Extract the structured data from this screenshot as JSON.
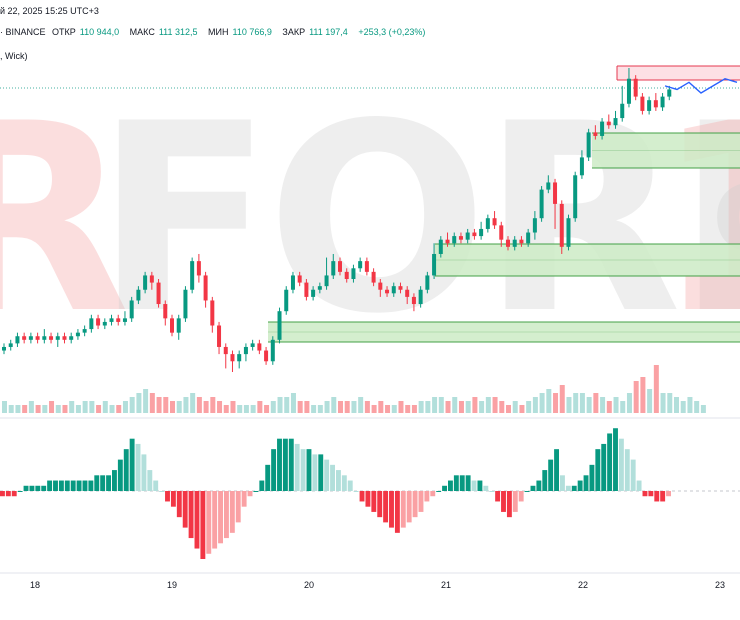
{
  "header": {
    "datetime": "й 22, 2025 15:25 UTC+3",
    "source": "· BINANCE",
    "open_label": "ОТКР",
    "open": "110 944,0",
    "high_label": "МАКС",
    "high": "111 312,5",
    "low_label": "МИН",
    "low": "110 766,9",
    "close_label": "ЗАКР",
    "close": "111 197,4",
    "change": "+253,3 (+0,23%)",
    "indicator": ", Wick)"
  },
  "watermark": {
    "left": "R",
    "main": "FOREX.",
    "right_digit": "1",
    "small": "o",
    "grey": "#cfcfcf",
    "red": "#f4a3a3"
  },
  "colors": {
    "up": "#089981",
    "down": "#f23645",
    "up_light": "#b2dfdb",
    "down_light": "#faa1a4",
    "zone_fill": "#cdebc6",
    "zone_line": "#43a047",
    "resist_fill": "#fde0e5",
    "resist_line": "#e53950",
    "forecast": "#2962ff"
  },
  "chart_data": {
    "type": "candlestick",
    "x_ticks": [
      {
        "label": "18",
        "pos": 35
      },
      {
        "label": "19",
        "pos": 172
      },
      {
        "label": "20",
        "pos": 309
      },
      {
        "label": "21",
        "pos": 446
      },
      {
        "label": "22",
        "pos": 583
      },
      {
        "label": "23",
        "pos": 720
      }
    ],
    "price_domain": [
      100,
      178
    ],
    "candles": [
      [
        151,
        152,
        153,
        150
      ],
      [
        152,
        153,
        154,
        151
      ],
      [
        153,
        155,
        156,
        152
      ],
      [
        155,
        154,
        156,
        153
      ],
      [
        154,
        155,
        156,
        153
      ],
      [
        155,
        154,
        156,
        153
      ],
      [
        154,
        155,
        157,
        153
      ],
      [
        155,
        154,
        156,
        153
      ],
      [
        154,
        155,
        156,
        152
      ],
      [
        155,
        154,
        156,
        153
      ],
      [
        154,
        155,
        156,
        153
      ],
      [
        155,
        156,
        157,
        154
      ],
      [
        156,
        157,
        158,
        155
      ],
      [
        157,
        160,
        161,
        156
      ],
      [
        160,
        158,
        161,
        157
      ],
      [
        158,
        159,
        160,
        157
      ],
      [
        159,
        160,
        161,
        158
      ],
      [
        160,
        159,
        161,
        158
      ],
      [
        159,
        160,
        162,
        158
      ],
      [
        160,
        165,
        166,
        159
      ],
      [
        165,
        168,
        169,
        164
      ],
      [
        168,
        172,
        173,
        167
      ],
      [
        172,
        170,
        173,
        168
      ],
      [
        170,
        164,
        171,
        163
      ],
      [
        164,
        160,
        165,
        158
      ],
      [
        160,
        156,
        161,
        155
      ],
      [
        156,
        160,
        161,
        154
      ],
      [
        160,
        168,
        169,
        159
      ],
      [
        168,
        176,
        177,
        167
      ],
      [
        176,
        172,
        178,
        170
      ],
      [
        172,
        165,
        173,
        163
      ],
      [
        165,
        158,
        166,
        156
      ],
      [
        158,
        152,
        159,
        150
      ],
      [
        152,
        150,
        153,
        146
      ],
      [
        150,
        148,
        151,
        145
      ],
      [
        148,
        150,
        151,
        146
      ],
      [
        150,
        152,
        153,
        148
      ],
      [
        152,
        153,
        154,
        151
      ],
      [
        153,
        151,
        154,
        150
      ],
      [
        151,
        148,
        152,
        147
      ],
      [
        148,
        154,
        155,
        147
      ],
      [
        154,
        162,
        163,
        153
      ],
      [
        162,
        168,
        169,
        161
      ],
      [
        168,
        172,
        173,
        167
      ],
      [
        172,
        170,
        173,
        169
      ],
      [
        170,
        166,
        171,
        165
      ],
      [
        166,
        168,
        169,
        165
      ],
      [
        168,
        169,
        170,
        167
      ],
      [
        169,
        172,
        177,
        168
      ],
      [
        172,
        176,
        178,
        171
      ],
      [
        176,
        173,
        177,
        172
      ],
      [
        173,
        171,
        174,
        170
      ],
      [
        171,
        174,
        175,
        170
      ],
      [
        174,
        176,
        177,
        173
      ],
      [
        176,
        173,
        177,
        172
      ],
      [
        173,
        170,
        174,
        169
      ],
      [
        170,
        168,
        171,
        166
      ],
      [
        168,
        167,
        169,
        166
      ],
      [
        167,
        169,
        170,
        166
      ],
      [
        169,
        168,
        170,
        167
      ],
      [
        168,
        166,
        169,
        164
      ],
      [
        166,
        164,
        167,
        162
      ],
      [
        164,
        168,
        169,
        163
      ],
      [
        168,
        172,
        173,
        167
      ],
      [
        172,
        178,
        181,
        171
      ],
      [
        178,
        182,
        183,
        177
      ],
      [
        182,
        181,
        184,
        180
      ],
      [
        181,
        183,
        184,
        180
      ],
      [
        183,
        182,
        184,
        181
      ],
      [
        182,
        184,
        185,
        181
      ],
      [
        184,
        183,
        185,
        182
      ],
      [
        183,
        185,
        187,
        182
      ],
      [
        185,
        188,
        189,
        184
      ],
      [
        188,
        186,
        190,
        185
      ],
      [
        186,
        182,
        187,
        180
      ],
      [
        182,
        180,
        183,
        179
      ],
      [
        180,
        182,
        183,
        179
      ],
      [
        182,
        181,
        183,
        180
      ],
      [
        181,
        184,
        185,
        180
      ],
      [
        184,
        188,
        190,
        182
      ],
      [
        188,
        196,
        197,
        187
      ],
      [
        196,
        198,
        200,
        195
      ],
      [
        198,
        192,
        199,
        185
      ],
      [
        192,
        180,
        193,
        178
      ],
      [
        180,
        188,
        189,
        179
      ],
      [
        188,
        200,
        201,
        187
      ],
      [
        200,
        205,
        207,
        199
      ],
      [
        205,
        212,
        213,
        204
      ],
      [
        212,
        211,
        214,
        210
      ],
      [
        211,
        215,
        216,
        210
      ],
      [
        215,
        214,
        217,
        213
      ],
      [
        214,
        216,
        218,
        213
      ],
      [
        216,
        220,
        225,
        215
      ],
      [
        220,
        227,
        230,
        219
      ],
      [
        227,
        222,
        228,
        221
      ],
      [
        222,
        218,
        223,
        217
      ],
      [
        218,
        221,
        222,
        217
      ],
      [
        221,
        219,
        223,
        218
      ],
      [
        219,
        222,
        223,
        218
      ],
      [
        222,
        224,
        225,
        221
      ]
    ],
    "zones": [
      {
        "y1": 177,
        "y2": 181
      },
      {
        "y1": 179,
        "y2": 184
      },
      {
        "y1": 204,
        "y2": 212
      }
    ],
    "resistance": {
      "y1": 224,
      "y2": 228
    },
    "forecast": [
      [
        0,
        225
      ],
      [
        1,
        224
      ],
      [
        2,
        226
      ],
      [
        3,
        223
      ],
      [
        4,
        225
      ],
      [
        5,
        227
      ],
      [
        6,
        226
      ]
    ],
    "volume": [
      3,
      2,
      2,
      2,
      3,
      2,
      2,
      3,
      2,
      2,
      3,
      2,
      3,
      3,
      2,
      3,
      2,
      2,
      3,
      4,
      5,
      6,
      5,
      4,
      4,
      3,
      3,
      4,
      5,
      4,
      3,
      4,
      3,
      2,
      3,
      2,
      2,
      2,
      3,
      2,
      3,
      4,
      4,
      5,
      3,
      3,
      2,
      2,
      3,
      4,
      3,
      3,
      3,
      4,
      3,
      2,
      3,
      2,
      2,
      3,
      2,
      2,
      3,
      3,
      4,
      4,
      3,
      4,
      3,
      3,
      4,
      3,
      4,
      4,
      3,
      2,
      3,
      2,
      3,
      4,
      5,
      6,
      5,
      7,
      4,
      5,
      5,
      4,
      5,
      4,
      3,
      4,
      3,
      5,
      8,
      9,
      6,
      12,
      5,
      5,
      4,
      3,
      4,
      3,
      2
    ],
    "histogram": [
      -1,
      -1,
      -1,
      0,
      1,
      1,
      1,
      1,
      2,
      2,
      2,
      2,
      2,
      2,
      2,
      2,
      3,
      3,
      3,
      4,
      6,
      8,
      10,
      9,
      7,
      4,
      2,
      0,
      -2,
      -3,
      -5,
      -7,
      -9,
      -11,
      -13,
      -12,
      -11,
      -10,
      -9,
      -8,
      -6,
      -3,
      -1,
      0,
      2,
      5,
      8,
      10,
      10,
      10,
      9,
      8,
      8,
      7,
      7,
      6,
      5,
      4,
      3,
      2,
      0,
      -2,
      -3,
      -4,
      -5,
      -6,
      -7,
      -8,
      -7,
      -6,
      -5,
      -4,
      -2,
      -1,
      0,
      1,
      2,
      3,
      3,
      3,
      2,
      2,
      1,
      0,
      -2,
      -4,
      -5,
      -4,
      -2,
      0,
      1,
      2,
      4,
      6,
      8,
      3,
      1,
      1,
      2,
      3,
      5,
      8,
      9,
      11,
      12,
      10,
      8,
      6,
      2,
      -1,
      -1,
      -2,
      -2,
      -1
    ]
  }
}
